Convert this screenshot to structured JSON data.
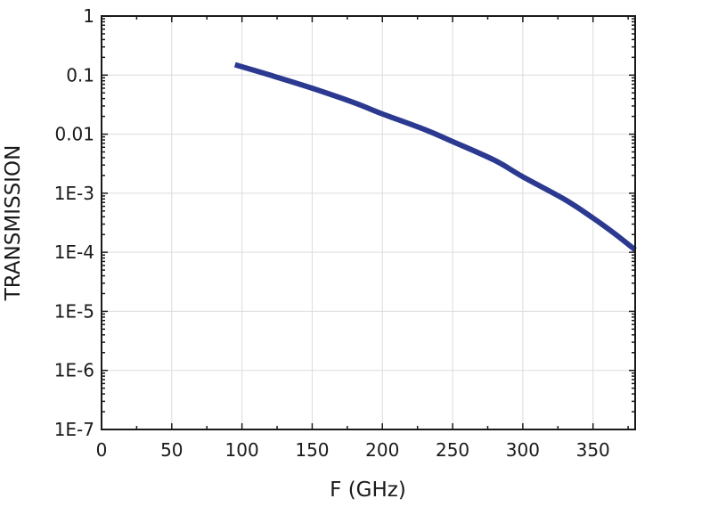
{
  "chart_data": {
    "type": "line",
    "title": "",
    "xlabel": "F (GHz)",
    "ylabel": "TRANSMISSION",
    "xlim": [
      0,
      380
    ],
    "ylim": [
      1e-07,
      1
    ],
    "y_scale": "log",
    "grid": true,
    "x_ticks": [
      0,
      50,
      100,
      150,
      200,
      250,
      300,
      350
    ],
    "x_tick_labels": [
      "0",
      "50",
      "100",
      "150",
      "200",
      "250",
      "300",
      "350"
    ],
    "y_ticks": [
      1,
      0.1,
      0.01,
      0.001,
      0.0001,
      1e-05,
      1e-06,
      1e-07
    ],
    "y_tick_labels": [
      "1",
      "0.1",
      "0.01",
      "1E-3",
      "1E-4",
      "1E-5",
      "1E-6",
      "1E-7"
    ],
    "series": [
      {
        "color": "#2b3990",
        "x": [
          95,
          120,
          150,
          180,
          200,
          230,
          250,
          280,
          300,
          330,
          350,
          365,
          380
        ],
        "y": [
          0.15,
          0.1,
          0.06,
          0.034,
          0.022,
          0.012,
          0.0075,
          0.0036,
          0.0019,
          0.00078,
          0.00038,
          0.00021,
          0.00011
        ]
      }
    ]
  }
}
